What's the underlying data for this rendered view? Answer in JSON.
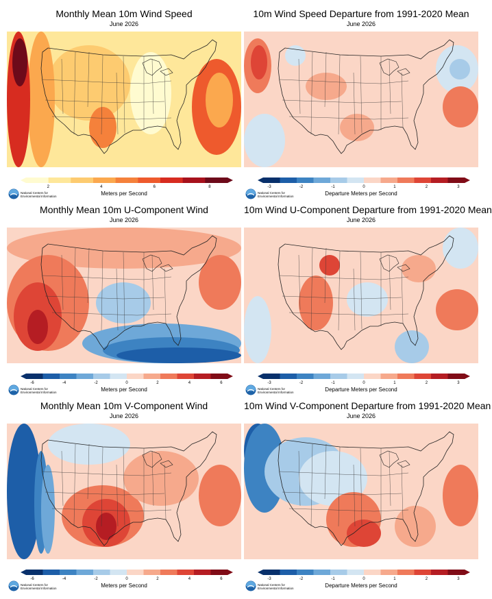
{
  "organization": {
    "line1": "National Centers for",
    "line2": "Environmental Information"
  },
  "panels": [
    {
      "title": "Monthly Mean 10m Wind Speed",
      "subtitle": "June 2026",
      "units": "Meters per Second",
      "scale": "speed",
      "ticks": [
        "2",
        "4",
        "6",
        "8"
      ],
      "colors": [
        "#fffbd0",
        "#fee79a",
        "#fdcb70",
        "#fba84e",
        "#f5813b",
        "#ee5a2d",
        "#d72c20",
        "#a7111c",
        "#6d0a1a"
      ]
    },
    {
      "title": "10m Wind Speed Departure from 1991-2020 Mean",
      "subtitle": "June 2026",
      "units": "Departure Meters per Second",
      "scale": "anom",
      "ticks": [
        "-3",
        "-2",
        "-1",
        "0",
        "1",
        "2",
        "3"
      ],
      "colors": [
        "#08306b",
        "#1d5ea8",
        "#3d83c2",
        "#6ea8d8",
        "#a7cbe8",
        "#d3e5f2",
        "#fbd6c6",
        "#f6a98c",
        "#ef7a5a",
        "#de4536",
        "#b51d23",
        "#800c17"
      ]
    },
    {
      "title": "Monthly Mean 10m U-Component Wind",
      "subtitle": "June 2026",
      "units": "Meters per Second",
      "scale": "div",
      "ticks": [
        "-6",
        "-4",
        "-2",
        "0",
        "2",
        "4",
        "6"
      ],
      "colors": [
        "#08306b",
        "#1d5ea8",
        "#3d83c2",
        "#6ea8d8",
        "#a7cbe8",
        "#d3e5f2",
        "#fbd6c6",
        "#f6a98c",
        "#ef7a5a",
        "#de4536",
        "#b51d23",
        "#800c17"
      ]
    },
    {
      "title": "10m Wind U-Component Departure from 1991-2020 Mean",
      "subtitle": "June 2026",
      "units": "Departure Meters per Second",
      "scale": "anom",
      "ticks": [
        "-3",
        "-2",
        "-1",
        "0",
        "1",
        "2",
        "3"
      ],
      "colors": [
        "#08306b",
        "#1d5ea8",
        "#3d83c2",
        "#6ea8d8",
        "#a7cbe8",
        "#d3e5f2",
        "#fbd6c6",
        "#f6a98c",
        "#ef7a5a",
        "#de4536",
        "#b51d23",
        "#800c17"
      ]
    },
    {
      "title": "Monthly Mean 10m V-Component Wind",
      "subtitle": "June 2026",
      "units": "Meters per Second",
      "scale": "div",
      "ticks": [
        "-6",
        "-4",
        "-2",
        "0",
        "2",
        "4",
        "6"
      ],
      "colors": [
        "#08306b",
        "#1d5ea8",
        "#3d83c2",
        "#6ea8d8",
        "#a7cbe8",
        "#d3e5f2",
        "#fbd6c6",
        "#f6a98c",
        "#ef7a5a",
        "#de4536",
        "#b51d23",
        "#800c17"
      ]
    },
    {
      "title": "10m Wind V-Component Departure from 1991-2020 Mean",
      "subtitle": "June 2026",
      "units": "Departure Meters per Second",
      "scale": "anom",
      "ticks": [
        "-3",
        "-2",
        "-1",
        "0",
        "1",
        "2",
        "3"
      ],
      "colors": [
        "#08306b",
        "#1d5ea8",
        "#3d83c2",
        "#6ea8d8",
        "#a7cbe8",
        "#d3e5f2",
        "#fbd6c6",
        "#f6a98c",
        "#ef7a5a",
        "#de4536",
        "#b51d23",
        "#800c17"
      ]
    }
  ]
}
